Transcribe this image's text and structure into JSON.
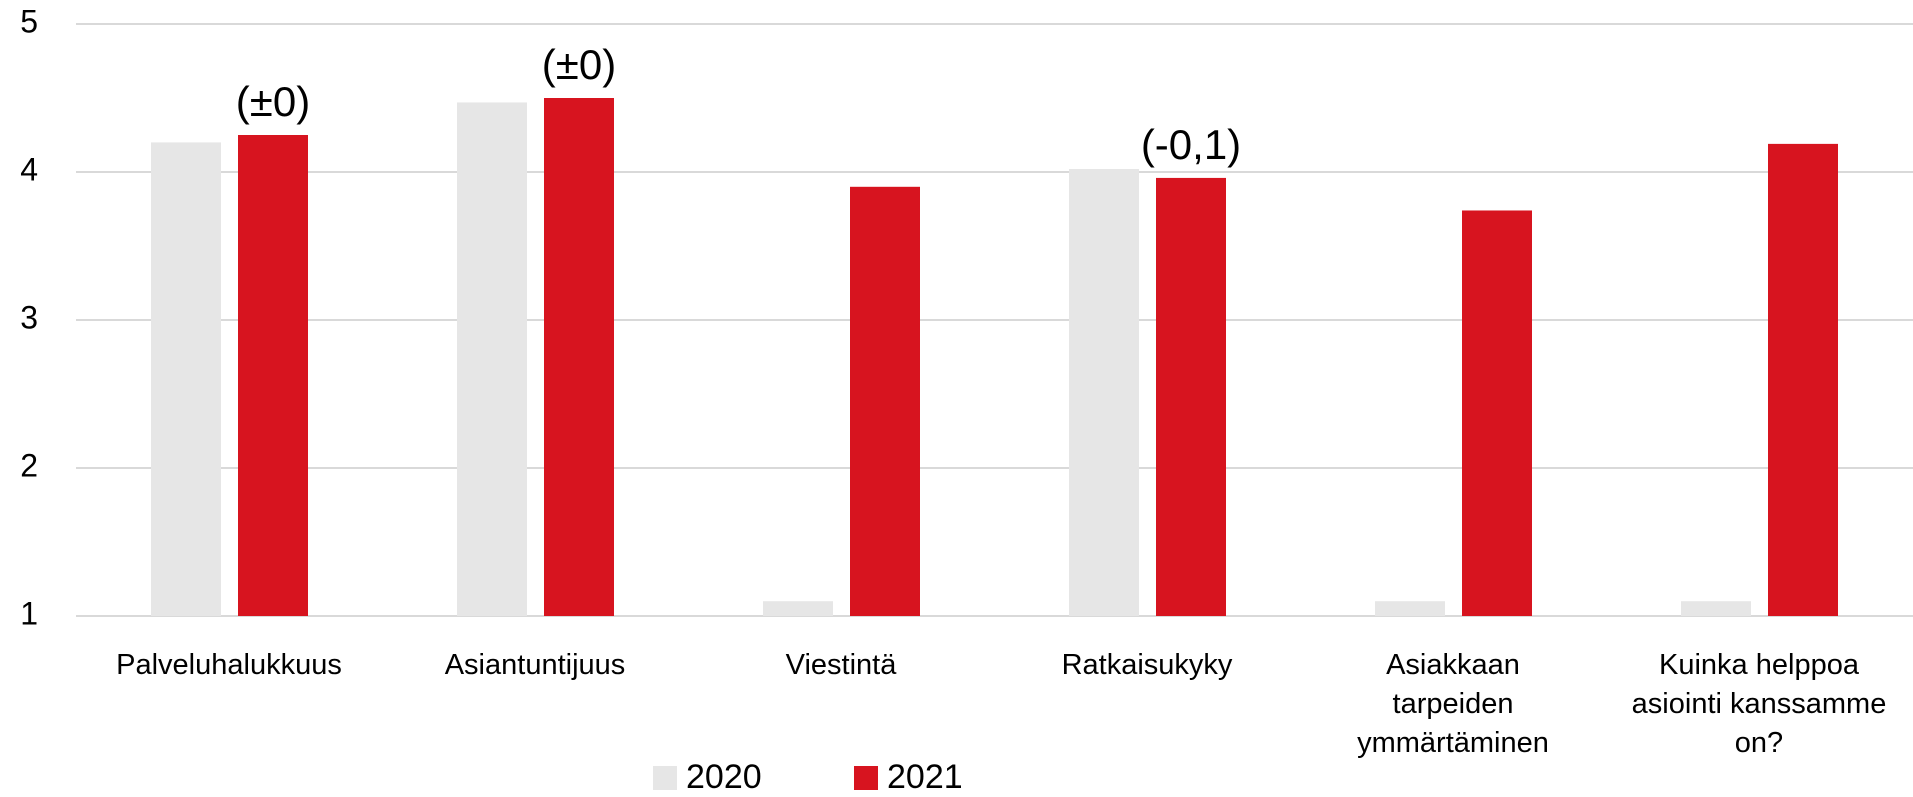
{
  "chart_data": {
    "type": "bar",
    "categories": [
      "Palveluhalukkuus",
      "Asiantuntijuus",
      "Viestintä",
      "Ratkaisukyky",
      "Asiakkaan tarpeiden ymmärtäminen",
      "Kuinka helppoa asiointi kanssamme on?"
    ],
    "series": [
      {
        "name": "2020",
        "color": "#e6e6e6",
        "values": [
          4.2,
          4.47,
          1.1,
          4.02,
          1.1,
          1.1
        ]
      },
      {
        "name": "2021",
        "color": "#d7141f",
        "values": [
          4.25,
          4.5,
          3.9,
          3.96,
          3.74,
          4.19
        ]
      }
    ],
    "annotations": [
      {
        "text": "(±0)",
        "category": "Palveluhalukkuus",
        "series": "2021"
      },
      {
        "text": "(±0)",
        "category": "Asiantuntijuus",
        "series": "2021"
      },
      {
        "text": "(-0,1)",
        "category": "Ratkaisukyky",
        "series": "2021"
      }
    ],
    "ylim": [
      1,
      5
    ],
    "yticks": [
      1,
      2,
      3,
      4,
      5
    ],
    "grid": true,
    "legend": "bottom"
  }
}
